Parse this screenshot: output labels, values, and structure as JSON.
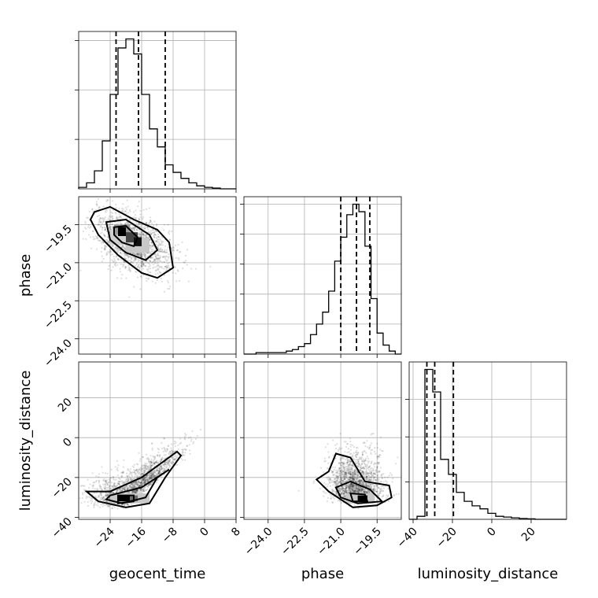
{
  "chart_data": [
    {
      "type": "histogram",
      "panel": "geocent_time marginal",
      "xlim": [
        -32,
        8
      ],
      "bin_edges": [
        -32,
        -30,
        -28,
        -26,
        -24,
        -22,
        -20,
        -18,
        -16,
        -14,
        -12,
        -10,
        -8,
        -6,
        -4,
        -2,
        0,
        2,
        4,
        6,
        8
      ],
      "relative_heights": [
        0.01,
        0.04,
        0.12,
        0.32,
        0.63,
        0.94,
        1.0,
        0.9,
        0.63,
        0.4,
        0.28,
        0.16,
        0.11,
        0.07,
        0.04,
        0.02,
        0.01,
        0.005,
        0,
        0
      ],
      "quantile_lines": [
        -22.5,
        -16.8,
        -10.0
      ],
      "grid": true
    },
    {
      "type": "histogram",
      "panel": "phase marginal",
      "xlim": [
        -25.0,
        -18.5
      ],
      "bin_edges": [
        -25.0,
        -24.75,
        -24.5,
        -24.25,
        -24.0,
        -23.75,
        -23.5,
        -23.25,
        -23.0,
        -22.75,
        -22.5,
        -22.25,
        -22.0,
        -21.75,
        -21.5,
        -21.25,
        -21.0,
        -20.75,
        -20.5,
        -20.25,
        -20.0,
        -19.75,
        -19.5,
        -19.25,
        -19.0,
        -18.75,
        -18.5
      ],
      "relative_heights": [
        0,
        0,
        0.01,
        0.01,
        0.01,
        0.01,
        0.01,
        0.02,
        0.03,
        0.05,
        0.07,
        0.13,
        0.2,
        0.28,
        0.42,
        0.62,
        0.78,
        0.93,
        1.0,
        0.95,
        0.72,
        0.37,
        0.14,
        0.06,
        0.02,
        0
      ],
      "quantile_lines": [
        -21.0,
        -20.35,
        -19.8
      ],
      "grid": true
    },
    {
      "type": "histogram",
      "panel": "luminosity_distance marginal",
      "xlim": [
        -42,
        38
      ],
      "bin_edges": [
        -42,
        -38,
        -34,
        -30,
        -26,
        -22,
        -18,
        -14,
        -10,
        -6,
        -2,
        2,
        6,
        10,
        14,
        18,
        22,
        26,
        30,
        34,
        38
      ],
      "relative_heights": [
        0,
        0.02,
        1.0,
        0.85,
        0.4,
        0.3,
        0.18,
        0.12,
        0.09,
        0.07,
        0.04,
        0.02,
        0.015,
        0.01,
        0.005,
        0.003,
        0,
        0,
        0,
        0
      ],
      "quantile_lines": [
        -33,
        -29,
        -19.5
      ],
      "grid": true
    },
    {
      "type": "scatter",
      "panel": "geocent_time vs phase",
      "xlabel": "",
      "ylabel": "phase",
      "xlim": [
        -32,
        8
      ],
      "ylim": [
        -24.6,
        -18.4
      ],
      "density_peak": [
        -20,
        -20.1
      ],
      "contour_levels": 3,
      "grid": true
    },
    {
      "type": "scatter",
      "panel": "geocent_time vs luminosity_distance",
      "xlabel": "geocent_time",
      "ylabel": "luminosity_distance",
      "xlim": [
        -32,
        8
      ],
      "ylim": [
        -41,
        38
      ],
      "density_peak": [
        -20,
        -30
      ],
      "contour_levels": 3,
      "grid": true
    },
    {
      "type": "scatter",
      "panel": "phase vs luminosity_distance",
      "xlabel": "phase",
      "ylabel": "",
      "xlim": [
        -25.0,
        -18.5
      ],
      "ylim": [
        -41,
        38
      ],
      "density_peak": [
        -20.1,
        -30
      ],
      "contour_levels": 3,
      "grid": true
    }
  ],
  "labels": {
    "x_geocent": "geocent_time",
    "x_phase": "phase",
    "x_lum": "luminosity_distance",
    "y_phase": "phase",
    "y_lum": "luminosity_distance"
  },
  "ticks": {
    "geocent_x": [
      "−24",
      "−16",
      "−8",
      "0",
      "8"
    ],
    "phase_x": [
      "−24.0",
      "−22.5",
      "−21.0",
      "−19.5"
    ],
    "lum_x": [
      "−40",
      "−20",
      "0",
      "20"
    ],
    "phase_y": [
      "−19.5",
      "−21.0",
      "−22.5",
      "−24.0"
    ],
    "lum_y": [
      "20",
      "0",
      "−20",
      "−40"
    ]
  }
}
